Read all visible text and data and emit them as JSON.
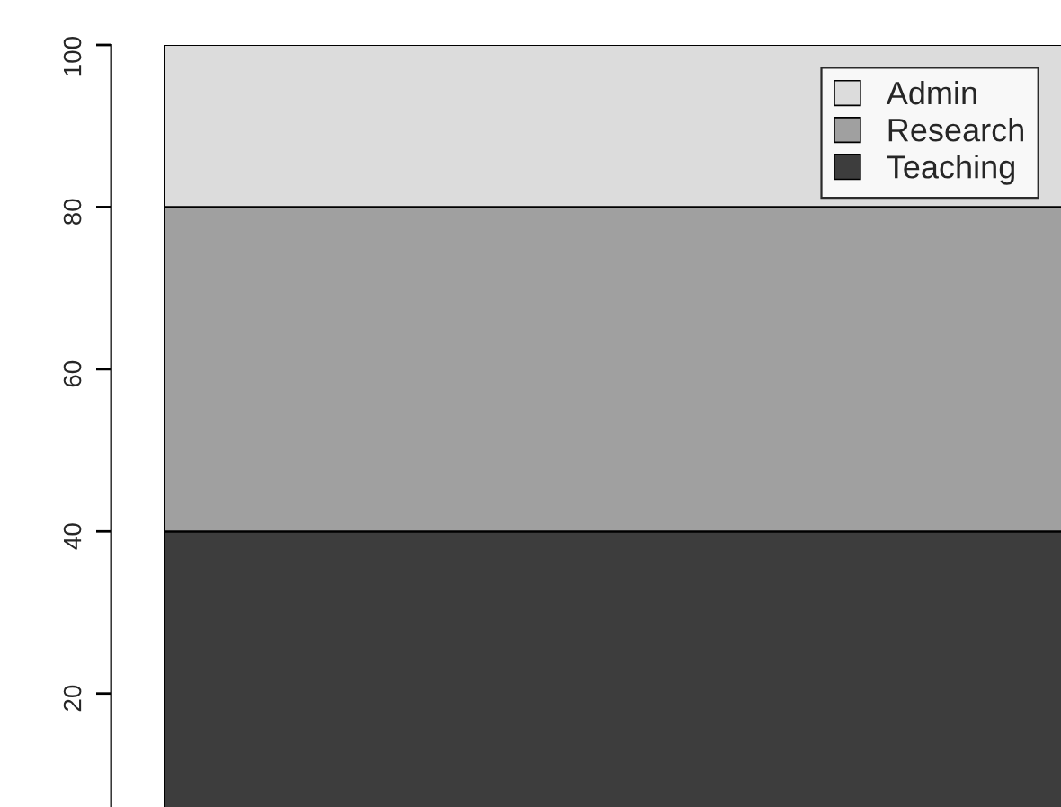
{
  "chart_data": {
    "type": "bar",
    "stacked": true,
    "categories": [
      null
    ],
    "series": [
      {
        "name": "Teaching",
        "color": "#3d3d3d",
        "values": [
          40
        ]
      },
      {
        "name": "Research",
        "color": "#a0a0a0",
        "values": [
          40
        ]
      },
      {
        "name": "Admin",
        "color": "#dcdcdc",
        "values": [
          20
        ]
      }
    ],
    "ylim": [
      6,
      100
    ],
    "yticks": [
      20,
      40,
      60,
      80,
      100
    ],
    "legend": "top right",
    "tick_labels": "y"
  }
}
